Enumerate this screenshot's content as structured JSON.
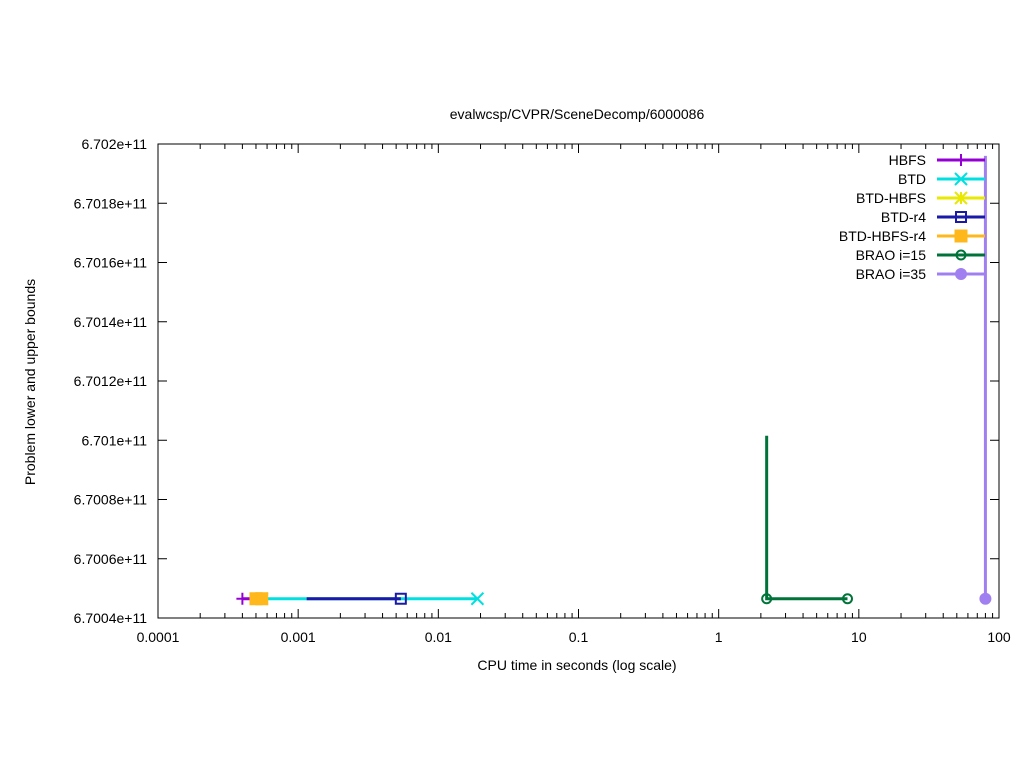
{
  "chart_data": {
    "type": "line",
    "title": "evalwcsp/CVPR/SceneDecomp/6000086",
    "xlabel": "CPU time in seconds (log scale)",
    "ylabel": "Problem lower and upper bounds",
    "xscale": "log",
    "xlim": [
      0.0001,
      100
    ],
    "ylim": [
      670040000000,
      670200000000
    ],
    "x_ticks": [
      0.0001,
      0.001,
      0.01,
      0.1,
      1,
      10,
      100
    ],
    "x_tick_labels": [
      "0.0001",
      "0.001",
      "0.01",
      "0.1",
      "1",
      "10",
      "100"
    ],
    "y_ticks": [
      670040000000,
      670060000000,
      670080000000,
      670100000000,
      670120000000,
      670140000000,
      670160000000,
      670180000000,
      670200000000
    ],
    "y_tick_labels": [
      "6.7004e+11",
      "6.7006e+11",
      "6.7008e+11",
      "6.701e+11",
      "6.7012e+11",
      "6.7014e+11",
      "6.7016e+11",
      "6.7018e+11",
      "6.702e+11"
    ],
    "grid": false,
    "legend_position": "top-right",
    "series": [
      {
        "name": "HBFS",
        "color": "#9400d3",
        "marker": "plus",
        "points": [
          [
            0.0004,
            670046500000
          ],
          [
            0.00048,
            670046500000
          ]
        ]
      },
      {
        "name": "BTD",
        "color": "#00e0e0",
        "marker": "cross",
        "points": [
          [
            0.00045,
            670046500000
          ],
          [
            0.019,
            670046500000
          ]
        ]
      },
      {
        "name": "BTD-HBFS",
        "color": "#e8e800",
        "marker": "star",
        "points": [
          [
            0.00048,
            670046500000
          ],
          [
            0.00055,
            670046500000
          ]
        ]
      },
      {
        "name": "BTD-r4",
        "color": "#1a1aa8",
        "marker": "open-square",
        "points": [
          [
            0.00115,
            670046500000
          ],
          [
            0.0054,
            670046500000
          ]
        ]
      },
      {
        "name": "BTD-HBFS-r4",
        "color": "#ffb81c",
        "marker": "filled-square",
        "points": [
          [
            0.0005,
            670046500000
          ],
          [
            0.00055,
            670046500000
          ]
        ]
      },
      {
        "name": "BRAO i=15",
        "color": "#00733a",
        "marker": "open-circle",
        "points": [
          [
            2.2,
            670101500000
          ],
          [
            2.2,
            670046500000
          ],
          [
            8.3,
            670046500000
          ]
        ]
      },
      {
        "name": "BRAO i=35",
        "color": "#a080f0",
        "marker": "filled-circle",
        "points": [
          [
            80,
            670196000000
          ],
          [
            80,
            670046500000
          ]
        ]
      }
    ]
  }
}
